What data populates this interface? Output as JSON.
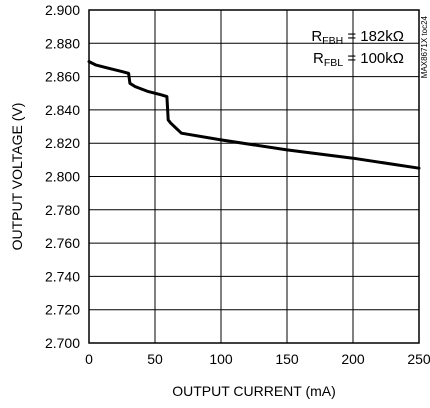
{
  "chart_data": {
    "type": "line",
    "title": "",
    "xlabel": "OUTPUT CURRENT (mA)",
    "ylabel": "OUTPUT VOLTAGE (V)",
    "xlim": [
      0,
      250
    ],
    "ylim": [
      2.7,
      2.9
    ],
    "grid": true,
    "x_ticks": [
      "0",
      "50",
      "100",
      "150",
      "200",
      "250"
    ],
    "y_ticks": [
      "2.700",
      "2.720",
      "2.740",
      "2.760",
      "2.780",
      "2.800",
      "2.820",
      "2.840",
      "2.860",
      "2.880",
      "2.900"
    ],
    "series": [
      {
        "x": [
          0,
          5,
          15,
          25,
          30,
          31,
          35,
          45,
          55,
          59,
          60,
          62,
          70,
          100,
          150,
          200,
          250
        ],
        "y": [
          2.869,
          2.867,
          2.865,
          2.863,
          2.862,
          2.856,
          2.854,
          2.851,
          2.849,
          2.848,
          2.834,
          2.832,
          2.826,
          2.822,
          2.816,
          2.811,
          2.805
        ]
      }
    ],
    "annotations": {
      "rfbh_main": "R",
      "rfbh_sub": "FBH",
      "rfbh_value": " = 182kΩ",
      "rfbl_main": "R",
      "rfbl_sub": "FBL",
      "rfbl_value": " = 100kΩ"
    },
    "side_note": "MAX8671X toc24"
  }
}
